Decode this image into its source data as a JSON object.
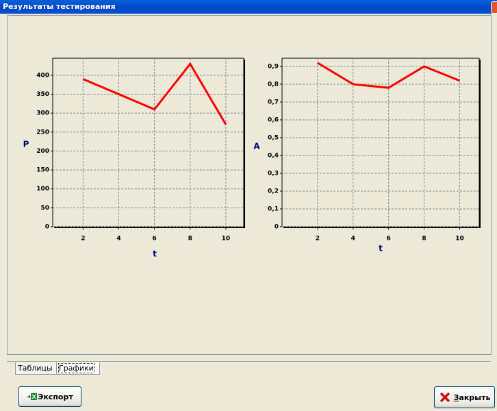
{
  "window": {
    "title": "Результаты тестирования"
  },
  "tabs": [
    "Таблицы",
    "Графики"
  ],
  "buttons": [
    "Экспорт",
    "Закрыть"
  ],
  "chart_data": [
    {
      "type": "line",
      "ylabel": "P",
      "xlabel": "t",
      "x": [
        2,
        4,
        6,
        8,
        10
      ],
      "values": [
        390,
        350,
        310,
        430,
        270
      ],
      "color": "#ff0000",
      "xlim": [
        0.3,
        11
      ],
      "ylim": [
        0,
        445
      ],
      "xticks": [
        2,
        4,
        6,
        8,
        10
      ],
      "yticks": [
        0,
        50,
        100,
        150,
        200,
        250,
        300,
        350,
        400
      ],
      "grid": true
    },
    {
      "type": "line",
      "ylabel": "A",
      "xlabel": "t",
      "x": [
        2,
        4,
        6,
        8,
        10
      ],
      "values": [
        0.92,
        0.8,
        0.78,
        0.9,
        0.82
      ],
      "color": "#ff0000",
      "xlim": [
        0,
        11.1
      ],
      "ylim": [
        0,
        0.946
      ],
      "xticks": [
        2,
        4,
        6,
        8,
        10
      ],
      "yticks": [
        0,
        {
          "value": 0.1,
          "label": "0,1"
        },
        {
          "value": 0.2,
          "label": "0,2"
        },
        {
          "value": 0.3,
          "label": "0,3"
        },
        {
          "value": 0.4,
          "label": "0,4"
        },
        {
          "value": 0.5,
          "label": "0,5"
        },
        {
          "value": 0.6,
          "label": "0,6"
        },
        {
          "value": 0.7,
          "label": "0,7"
        },
        {
          "value": 0.8,
          "label": "0,8"
        },
        {
          "value": 0.9,
          "label": "0,9"
        }
      ],
      "grid": true
    }
  ]
}
